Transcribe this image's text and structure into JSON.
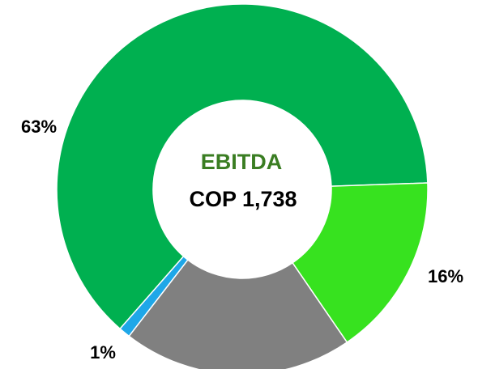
{
  "chart_data": {
    "type": "donut",
    "title": "EBITDA",
    "subtitle": "COP 1,738",
    "values": [
      16,
      20,
      1,
      63
    ],
    "value_labels": [
      "16%",
      null,
      "1%",
      "63%"
    ],
    "colors": [
      "#37e21f",
      "#808080",
      "#1ea7e8",
      "#00b050"
    ]
  }
}
